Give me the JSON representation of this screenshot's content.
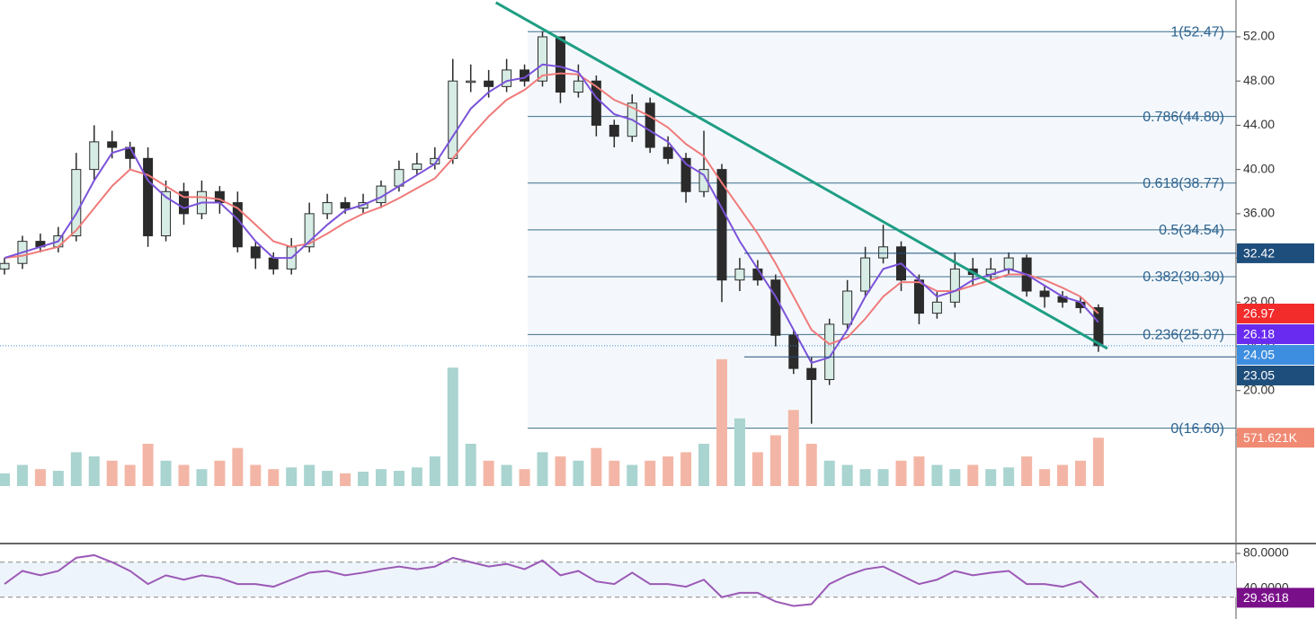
{
  "chart_data": {
    "type": "candlestick",
    "open": [
      31,
      31.5,
      33.5,
      33,
      34,
      40,
      42.5,
      42,
      41,
      34,
      38,
      36,
      38,
      37,
      33,
      32,
      31,
      33,
      36,
      37,
      36.5,
      37,
      38.5,
      40,
      40.5,
      41,
      48,
      48,
      47.5,
      49,
      48,
      52,
      47,
      48,
      44,
      43,
      46,
      42,
      41,
      38,
      40,
      30,
      31,
      30,
      25,
      22,
      21,
      26,
      29,
      32,
      33,
      30,
      27,
      28,
      31,
      30.5,
      31,
      32,
      29,
      28.5,
      28,
      27.5
    ],
    "high": [
      32,
      34,
      34.2,
      34.8,
      41.5,
      44,
      43.5,
      42.5,
      42,
      39,
      38.8,
      39,
      38.5,
      38,
      33.5,
      32.5,
      33.8,
      37,
      37.8,
      37.5,
      37.8,
      39,
      40.8,
      41.5,
      42,
      50,
      49.5,
      49,
      50,
      49.5,
      52.5,
      52,
      49.5,
      48.5,
      44.5,
      46.8,
      46.5,
      43,
      41.5,
      43.5,
      40.5,
      32,
      31.8,
      30.5,
      25.5,
      23,
      26.5,
      30,
      33,
      35,
      33.5,
      30.5,
      29,
      32.5,
      32,
      32,
      32.5,
      32.3,
      29.5,
      29,
      28.5,
      27.8
    ],
    "low": [
      30.5,
      31,
      32.5,
      32.5,
      33.5,
      39,
      41,
      40,
      33,
      33.5,
      35,
      35.5,
      36,
      32.5,
      31,
      30.5,
      30.5,
      32.5,
      35.5,
      36,
      36,
      36.5,
      38,
      39.5,
      40,
      40.5,
      47,
      46.5,
      47,
      47.5,
      47.5,
      46,
      46.5,
      43,
      42,
      42.5,
      41.5,
      40.5,
      37,
      37.5,
      28,
      29,
      29.5,
      24,
      21.5,
      17,
      20.5,
      25.5,
      28.5,
      31.5,
      29,
      26,
      26.5,
      27.5,
      29.5,
      30,
      30.5,
      28.5,
      27.5,
      27.5,
      27,
      23.5
    ],
    "close": [
      31.5,
      33.5,
      33,
      34,
      40,
      42.5,
      42,
      41,
      34,
      38,
      36,
      38,
      37,
      33,
      32,
      31,
      33,
      36,
      37,
      36.5,
      37,
      38.5,
      40,
      40.5,
      41,
      48,
      48,
      47.5,
      49,
      48,
      52,
      47,
      48,
      44,
      43,
      46,
      42,
      41,
      38,
      40,
      30,
      31,
      30,
      25,
      22,
      21,
      26,
      29,
      32,
      33,
      30,
      27,
      28,
      31,
      30.5,
      31,
      32,
      29,
      28.5,
      28,
      27.5,
      24.05
    ],
    "up_color": "#d6ece4",
    "down_color": "#2b2b2b",
    "ylim": [
      11.04,
      55.33
    ],
    "yticks": [
      {
        "value": 16,
        "label": "16.00"
      },
      {
        "value": 20,
        "label": "20.00"
      },
      {
        "value": 24,
        "label": "24.00"
      },
      {
        "value": 28,
        "label": "28.00"
      },
      {
        "value": 32,
        "label": "32.00"
      },
      {
        "value": 36,
        "label": "36.00"
      },
      {
        "value": 40,
        "label": "40.00"
      },
      {
        "value": 44,
        "label": "44.00"
      },
      {
        "value": 48,
        "label": "48.00"
      },
      {
        "value": 52,
        "label": "52.00"
      }
    ],
    "fast_ma": {
      "color": "#7b52d9",
      "values": [
        32,
        32.5,
        33,
        33.5,
        36,
        39,
        41.5,
        42,
        39,
        37.5,
        36.5,
        37,
        37,
        35.5,
        33.5,
        32,
        32,
        33.5,
        35,
        36.3,
        36.8,
        37.5,
        38.5,
        39.5,
        40.5,
        43,
        45.5,
        47,
        48,
        48.3,
        49.5,
        49.3,
        48.8,
        46.5,
        45,
        44.5,
        43.5,
        42.5,
        40.5,
        39.5,
        36.5,
        33.5,
        31,
        28.5,
        25.5,
        22.5,
        23,
        25.5,
        28.5,
        31,
        31.5,
        30,
        28.5,
        29,
        30,
        30.5,
        31,
        30.5,
        29.5,
        28.5,
        28,
        26.18
      ]
    },
    "slow_ma": {
      "color": "#f07a7a",
      "values": [
        32,
        32.2,
        32.6,
        33,
        34.5,
        36.5,
        38.5,
        40,
        39.5,
        38.5,
        37.5,
        37.5,
        37.3,
        36.5,
        35,
        33.5,
        33,
        33.3,
        34.2,
        35.2,
        36,
        36.6,
        37.4,
        38.3,
        39.2,
        41,
        43,
        44.8,
        46.3,
        47.2,
        48.5,
        48.7,
        48.6,
        47.5,
        46.3,
        45.6,
        44.8,
        43.8,
        42.3,
        41.2,
        38.8,
        36.5,
        34.2,
        31.5,
        28.5,
        25.5,
        24.2,
        24.8,
        26.5,
        28.5,
        29.8,
        29.8,
        29,
        29,
        29.5,
        30,
        30.5,
        30.5,
        30,
        29.3,
        28.5,
        26.97
      ]
    },
    "volume": {
      "up_color": "#a9d4d0",
      "down_color": "#f3b6a6",
      "lim": [
        0,
        1700000
      ],
      "values": [
        150000,
        250000,
        200000,
        180000,
        400000,
        350000,
        300000,
        250000,
        500000,
        300000,
        250000,
        200000,
        300000,
        450000,
        250000,
        200000,
        220000,
        250000,
        180000,
        150000,
        170000,
        200000,
        180000,
        220000,
        350000,
        1400000,
        500000,
        300000,
        250000,
        200000,
        400000,
        350000,
        300000,
        450000,
        300000,
        250000,
        300000,
        350000,
        400000,
        500000,
        1500000,
        800000,
        400000,
        600000,
        900000,
        500000,
        300000,
        250000,
        200000,
        200000,
        300000,
        350000,
        250000,
        200000,
        250000,
        200000,
        220000,
        350000,
        200000,
        250000,
        300000,
        571621
      ]
    },
    "volume_label": {
      "value": 571621,
      "label": "571.621K",
      "color": "#f08a73"
    },
    "fib_color": "#3d6f8a",
    "fib_levels": [
      {
        "value": 52.47,
        "label": "1(52.47)"
      },
      {
        "value": 44.8,
        "label": "0.786(44.80)"
      },
      {
        "value": 38.77,
        "label": "0.618(38.77)"
      },
      {
        "value": 34.54,
        "label": "0.5(34.54)"
      },
      {
        "value": 30.3,
        "label": "0.382(30.30)"
      },
      {
        "value": 25.07,
        "label": "0.236(25.07)"
      },
      {
        "value": 16.6,
        "label": "0(16.60)"
      }
    ],
    "trendline": {
      "color": "#1f9e84",
      "x": [
        27.4,
        61.5
      ],
      "y": [
        55.1,
        23.8
      ]
    },
    "price_labels": [
      {
        "value": 32.42,
        "label": "32.42",
        "color": "#1e4e7c",
        "line": "solid"
      },
      {
        "value": 26.97,
        "label": "26.97",
        "color": "#f22b2b",
        "line": "none"
      },
      {
        "value": 26.18,
        "label": "26.18",
        "color": "#6a2bf0",
        "line": "none"
      },
      {
        "value": 24.05,
        "label": "24.05",
        "color": "#3d8ee0",
        "line": "dotted"
      },
      {
        "value": 23.05,
        "label": "23.05",
        "color": "#1e4e7c",
        "line": "solid"
      }
    ],
    "rsi": {
      "color": "#9b59b6",
      "ylim": [
        5.1,
        91.3
      ],
      "yticks": [
        {
          "value": 80,
          "label": "80.0000"
        },
        {
          "value": 40,
          "label": "40.0000"
        }
      ],
      "bands": [
        30,
        70
      ],
      "values": [
        45,
        60,
        55,
        60,
        75,
        78,
        70,
        60,
        45,
        55,
        50,
        55,
        52,
        45,
        45,
        42,
        50,
        58,
        60,
        55,
        58,
        62,
        65,
        62,
        65,
        75,
        70,
        65,
        68,
        62,
        72,
        55,
        60,
        48,
        45,
        58,
        45,
        45,
        42,
        50,
        30,
        35,
        35,
        25,
        20,
        22,
        45,
        55,
        62,
        65,
        55,
        45,
        50,
        60,
        55,
        58,
        60,
        45,
        45,
        42,
        48,
        29.3618
      ],
      "label": {
        "value": 29.3618,
        "label": "29.3618",
        "color": "#7a0f8a"
      }
    }
  }
}
